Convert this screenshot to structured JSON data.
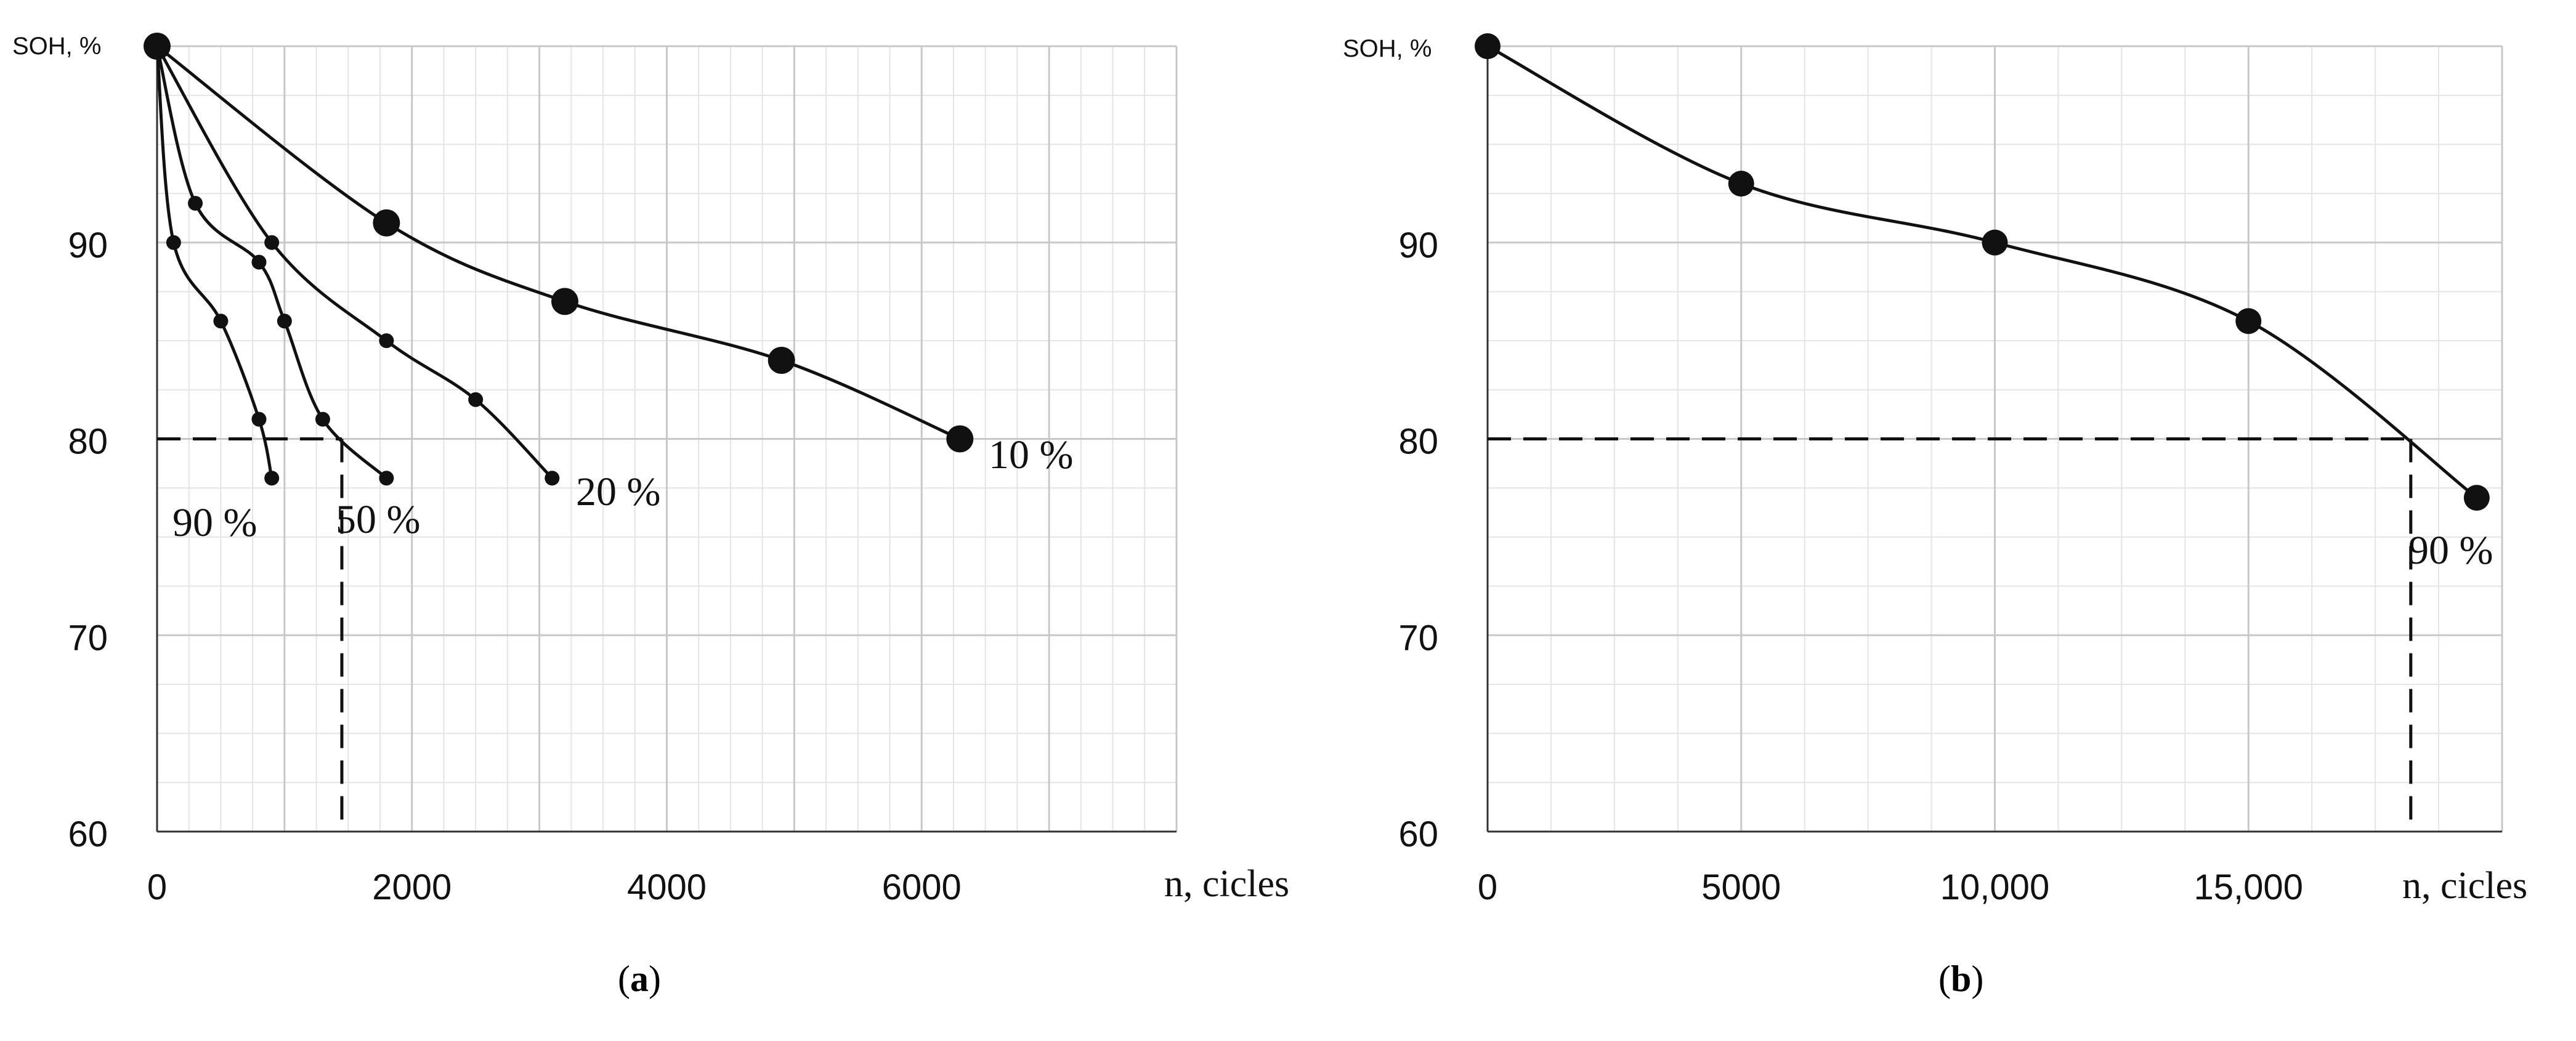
{
  "chart_data": [
    {
      "type": "line",
      "panel": "(a)",
      "panel_letter": "a",
      "ylabel": "SOH, %",
      "xlabel": "n, cicles",
      "xlim": [
        0,
        8000
      ],
      "ylim": [
        60,
        100
      ],
      "xticks": [
        "0",
        "2000",
        "4000",
        "6000"
      ],
      "xtick_values": [
        0,
        2000,
        4000,
        6000
      ],
      "yticks": [
        "60",
        "70",
        "80",
        "90"
      ],
      "ytick_values": [
        60,
        70,
        80,
        90
      ],
      "grid": true,
      "series": [
        {
          "name": "10 %",
          "marker": "large",
          "x": [
            0,
            1800,
            3200,
            4900,
            6300
          ],
          "y": [
            100,
            91,
            87,
            84,
            80
          ]
        },
        {
          "name": "20 %",
          "marker": "small",
          "x": [
            0,
            900,
            1800,
            2500,
            3100
          ],
          "y": [
            100,
            90,
            85,
            82,
            78
          ]
        },
        {
          "name": "50 %",
          "marker": "small",
          "x": [
            0,
            300,
            800,
            1000,
            1300,
            1800
          ],
          "y": [
            100,
            92,
            89,
            86,
            81,
            78
          ]
        },
        {
          "name": "90 %",
          "marker": "small",
          "x": [
            0,
            130,
            500,
            800,
            900
          ],
          "y": [
            100,
            90,
            86,
            81,
            78
          ]
        }
      ],
      "reference_lines": {
        "y": 80,
        "x": 1450
      }
    },
    {
      "type": "line",
      "panel": "(b)",
      "panel_letter": "b",
      "ylabel": "SOH, %",
      "xlabel": "n, cicles",
      "xlim": [
        0,
        20000
      ],
      "ylim": [
        60,
        100
      ],
      "xticks": [
        "0",
        "5000",
        "10,000",
        "15,000"
      ],
      "xtick_values": [
        0,
        5000,
        10000,
        15000
      ],
      "yticks": [
        "60",
        "70",
        "80",
        "90"
      ],
      "ytick_values": [
        60,
        70,
        80,
        90
      ],
      "grid": true,
      "series": [
        {
          "name": "90 %",
          "marker": "large",
          "x": [
            0,
            5000,
            10000,
            15000,
            19500
          ],
          "y": [
            100,
            93,
            90,
            86,
            77
          ]
        }
      ],
      "reference_lines": {
        "y": 80,
        "x": 18200
      }
    }
  ]
}
